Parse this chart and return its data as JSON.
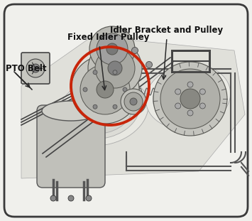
{
  "bg_color": "#f0f0ec",
  "border_color": "#3a3a3a",
  "labels": {
    "idler_bracket": "Idler Bracket and Pulley",
    "fixed_idler": "Fixed Idler Pulley",
    "pto_belt": "PTO Belt"
  },
  "red_circle_color": "#c8250a",
  "line_color": "#2a2a2a",
  "mech_color": "#555555",
  "light_gray": "#d0d0cc",
  "mid_gray": "#aaaaaa",
  "dark_gray": "#666666"
}
